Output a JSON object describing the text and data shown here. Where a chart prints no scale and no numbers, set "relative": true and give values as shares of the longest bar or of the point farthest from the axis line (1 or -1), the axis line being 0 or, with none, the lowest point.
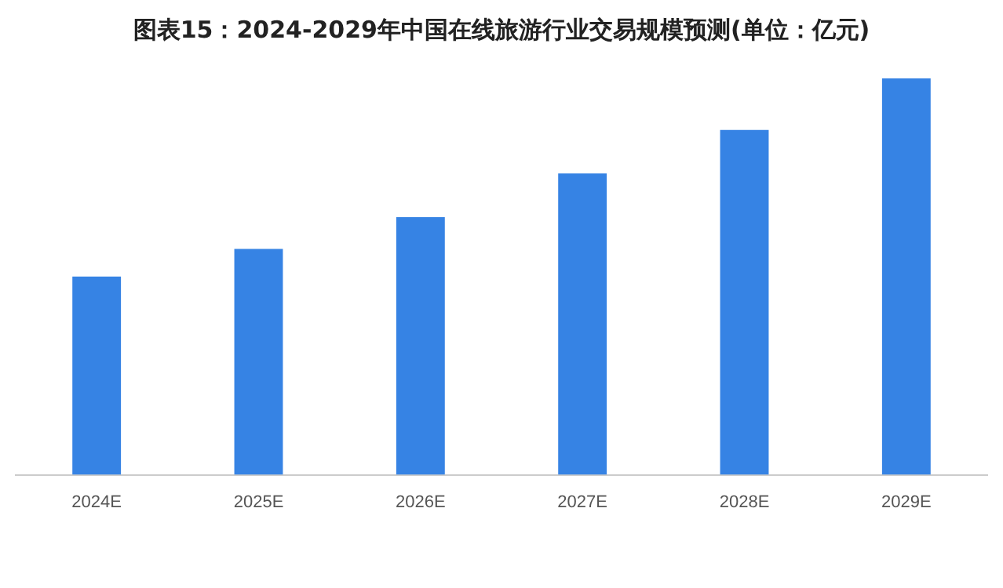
{
  "chart_data": {
    "type": "bar",
    "title": "图表15：2024-2029年中国在线旅游行业交易规模预测(单位：亿元)",
    "categories": [
      "2024E",
      "2025E",
      "2026E",
      "2027E",
      "2028E",
      "2029E"
    ],
    "values": [
      0.5,
      0.57,
      0.65,
      0.76,
      0.87,
      1
    ],
    "color": "#3683e4",
    "relative": true
  }
}
